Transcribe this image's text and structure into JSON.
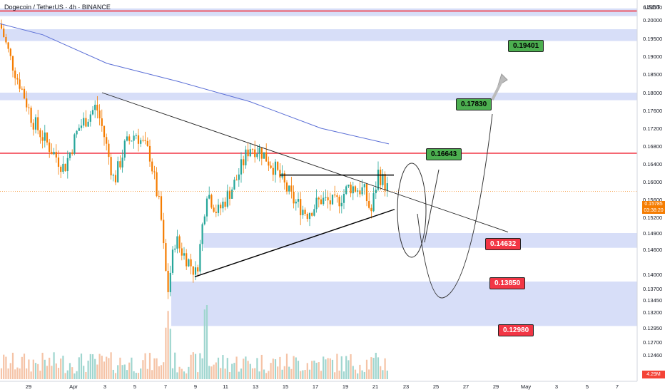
{
  "header": {
    "title": "Dogecoin / TetherUS · 4h · BINANCE"
  },
  "axis": {
    "unit": "USDT",
    "current_price": "0.15785",
    "current_time": "03:38:20",
    "volume_label": "4.29M"
  },
  "tags": [
    {
      "text": "0.19401",
      "kind": "green"
    },
    {
      "text": "0.17830",
      "kind": "green"
    },
    {
      "text": "0.16643",
      "kind": "green"
    },
    {
      "text": "0.14632",
      "kind": "red"
    },
    {
      "text": "0.13850",
      "kind": "red"
    },
    {
      "text": "0.12980",
      "kind": "red"
    }
  ],
  "colors": {
    "up": "#26a69a",
    "down": "#f57c00",
    "resistance": "#f23645",
    "zone": "#c9d3f5",
    "ma": "#5b6fd6"
  },
  "chart_data": {
    "type": "candlestick",
    "title": "Dogecoin / TetherUS · 4h · BINANCE",
    "ylim": [
      0.124,
      0.207
    ],
    "y_ticks": [
      "0.20500",
      "0.20000",
      "0.19500",
      "0.19000",
      "0.18500",
      "0.18000",
      "0.17600",
      "0.17200",
      "0.16800",
      "0.16400",
      "0.16000",
      "0.15600",
      "0.15200",
      "0.14900",
      "0.14600",
      "0.14000",
      "0.13700",
      "0.13450",
      "0.13200",
      "0.12950",
      "0.12700",
      "0.12460"
    ],
    "x_ticks": [
      "29",
      "Apr",
      "3",
      "5",
      "7",
      "9",
      "11",
      "13",
      "15",
      "17",
      "19",
      "21",
      "23",
      "25",
      "27",
      "29",
      "May",
      "3",
      "5",
      "7"
    ],
    "resistance_lines": [
      0.2035,
      0.1664
    ],
    "zones": [
      [
        0.2015,
        0.2045
      ],
      [
        0.1943,
        0.1975
      ],
      [
        0.1783,
        0.18
      ],
      [
        0.1463,
        0.149
      ],
      [
        0.1298,
        0.1385
      ]
    ],
    "targets": [
      0.19401,
      0.1783,
      0.16643,
      0.14632,
      0.1385,
      0.1298
    ],
    "current_price": 0.15785
  }
}
